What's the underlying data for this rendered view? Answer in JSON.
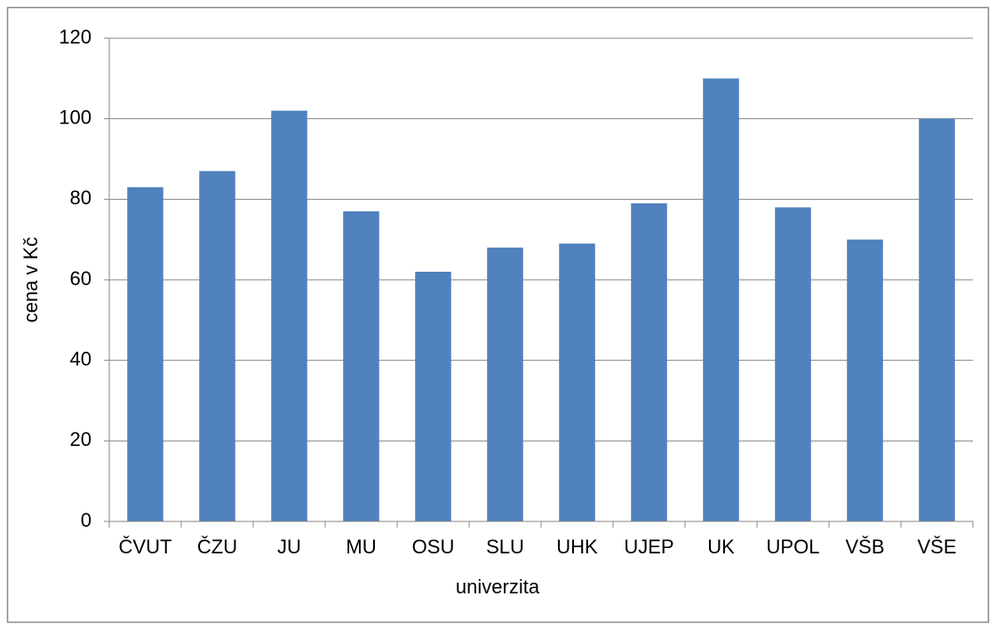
{
  "chart_data": {
    "type": "bar",
    "xlabel": "univerzita",
    "ylabel": "cena v Kč",
    "categories": [
      "ČVUT",
      "ČZU",
      "JU",
      "MU",
      "OSU",
      "SLU",
      "UHK",
      "UJEP",
      "UK",
      "UPOL",
      "VŠB",
      "VŠE"
    ],
    "values": [
      83,
      87,
      102,
      77,
      62,
      68,
      69,
      79,
      110,
      78,
      70,
      100
    ],
    "color": "#4f81bd",
    "ylim": [
      0,
      120
    ],
    "yticks": [
      0,
      20,
      40,
      60,
      80,
      100,
      120
    ],
    "grid": true
  }
}
